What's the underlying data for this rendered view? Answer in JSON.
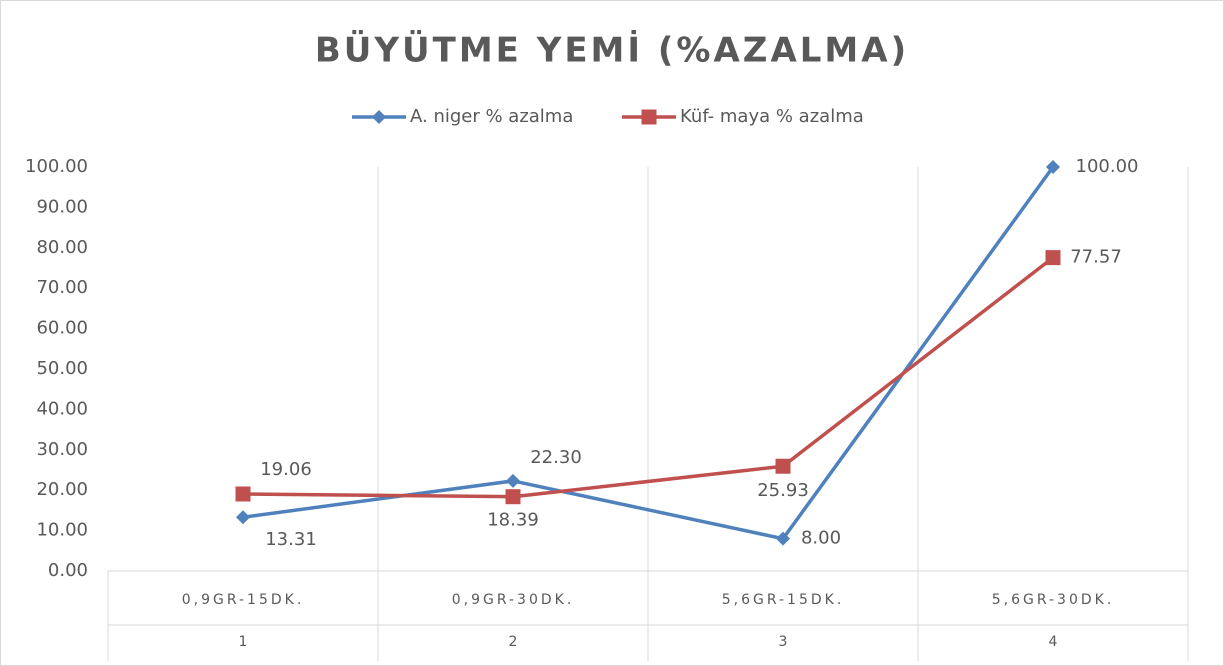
{
  "chart_data": {
    "type": "line",
    "title": "BÜYÜTME YEMİ (%AZALMA)",
    "categories": [
      "0,9GR-15DK.",
      "0,9GR-30DK.",
      "5,6GR-15DK.",
      "5,6GR-30DK."
    ],
    "category_groups": [
      "1",
      "2",
      "3",
      "4"
    ],
    "series": [
      {
        "name": "A. niger % azalma",
        "color": "#4f81bd",
        "marker": "diamond",
        "values": [
          13.31,
          22.3,
          8.0,
          100.0
        ],
        "value_labels": [
          "13.31",
          "22.30",
          "8.00",
          "100.00"
        ]
      },
      {
        "name": "Küf- maya % azalma",
        "color": "#c0504d",
        "marker": "square",
        "values": [
          19.06,
          18.39,
          25.93,
          77.57
        ],
        "value_labels": [
          "19.06",
          "18.39",
          "25.93",
          "77.57"
        ]
      }
    ],
    "ylim": [
      0,
      100
    ],
    "yticks": [
      {
        "value": 0,
        "label": "0.00"
      },
      {
        "value": 10,
        "label": "10.00"
      },
      {
        "value": 20,
        "label": "20.00"
      },
      {
        "value": 30,
        "label": "30.00"
      },
      {
        "value": 40,
        "label": "40.00"
      },
      {
        "value": 50,
        "label": "50.00"
      },
      {
        "value": 60,
        "label": "60.00"
      },
      {
        "value": 70,
        "label": "70.00"
      },
      {
        "value": 80,
        "label": "80.00"
      },
      {
        "value": 90,
        "label": "90.00"
      },
      {
        "value": 100,
        "label": "100.00"
      }
    ],
    "legend": "top",
    "grid": "vertical"
  }
}
